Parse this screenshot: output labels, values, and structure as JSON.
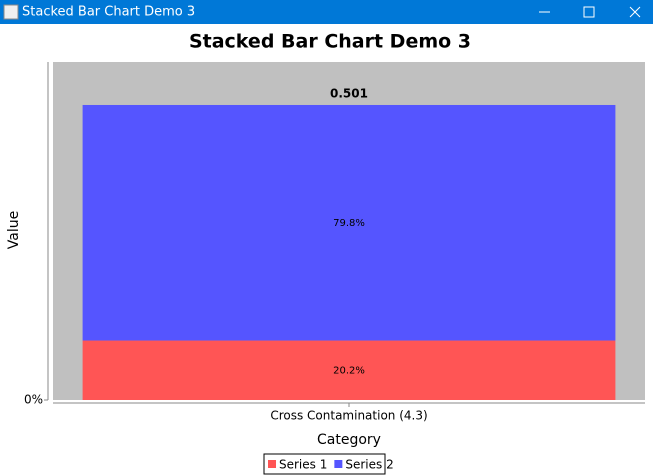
{
  "window": {
    "title": "Stacked Bar Chart Demo 3"
  },
  "chart_data": {
    "type": "stacked-bar",
    "title": "Stacked Bar Chart Demo 3",
    "x_label": "Category",
    "y_label": "Value",
    "categories": [
      "Cross Contamination (4.3)"
    ],
    "series": [
      {
        "name": "Series 1",
        "color": "#ff5555",
        "values": [
          0.101
        ],
        "value_labels": [
          "20.2%"
        ]
      },
      {
        "name": "Series 2",
        "color": "#5555ff",
        "values": [
          0.4
        ],
        "value_labels": [
          "79.8%"
        ]
      }
    ],
    "totals": [
      0.501
    ],
    "ylim": [
      0,
      0.574
    ],
    "yticks": [
      {
        "value": 0,
        "label": "0%"
      }
    ],
    "plot_background": "#c0c0c0",
    "legend": "bottom"
  }
}
